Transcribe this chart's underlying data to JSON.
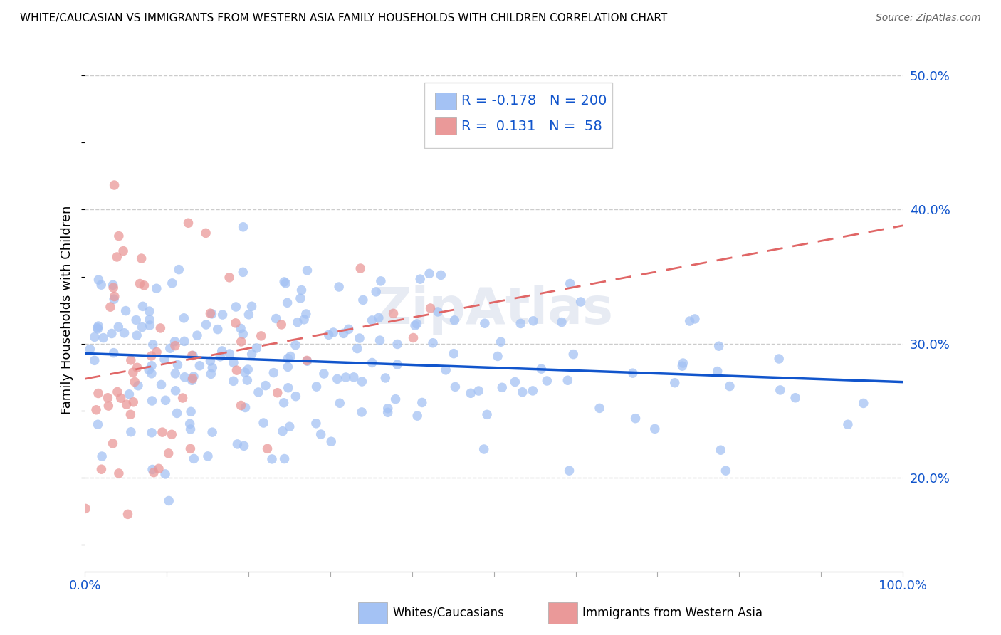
{
  "title": "WHITE/CAUCASIAN VS IMMIGRANTS FROM WESTERN ASIA FAMILY HOUSEHOLDS WITH CHILDREN CORRELATION CHART",
  "source": "Source: ZipAtlas.com",
  "ylabel": "Family Households with Children",
  "legend1_label": "Whites/Caucasians",
  "legend2_label": "Immigrants from Western Asia",
  "R1": -0.178,
  "N1": 200,
  "R2": 0.131,
  "N2": 58,
  "blue_color": "#a4c2f4",
  "pink_color": "#ea9999",
  "blue_line_color": "#1155cc",
  "pink_line_color": "#e06666",
  "xlim": [
    0,
    1
  ],
  "ylim": [
    0.13,
    0.52
  ],
  "yticks": [
    0.2,
    0.3,
    0.4,
    0.5
  ],
  "xticks": [
    0.0,
    0.1,
    0.2,
    0.3,
    0.4,
    0.5,
    0.6,
    0.7,
    0.8,
    0.9,
    1.0
  ],
  "background_color": "#ffffff",
  "watermark": "ZipAtlas",
  "legend_text_color": "#1155cc",
  "bottom_legend_text_color": "#000000"
}
